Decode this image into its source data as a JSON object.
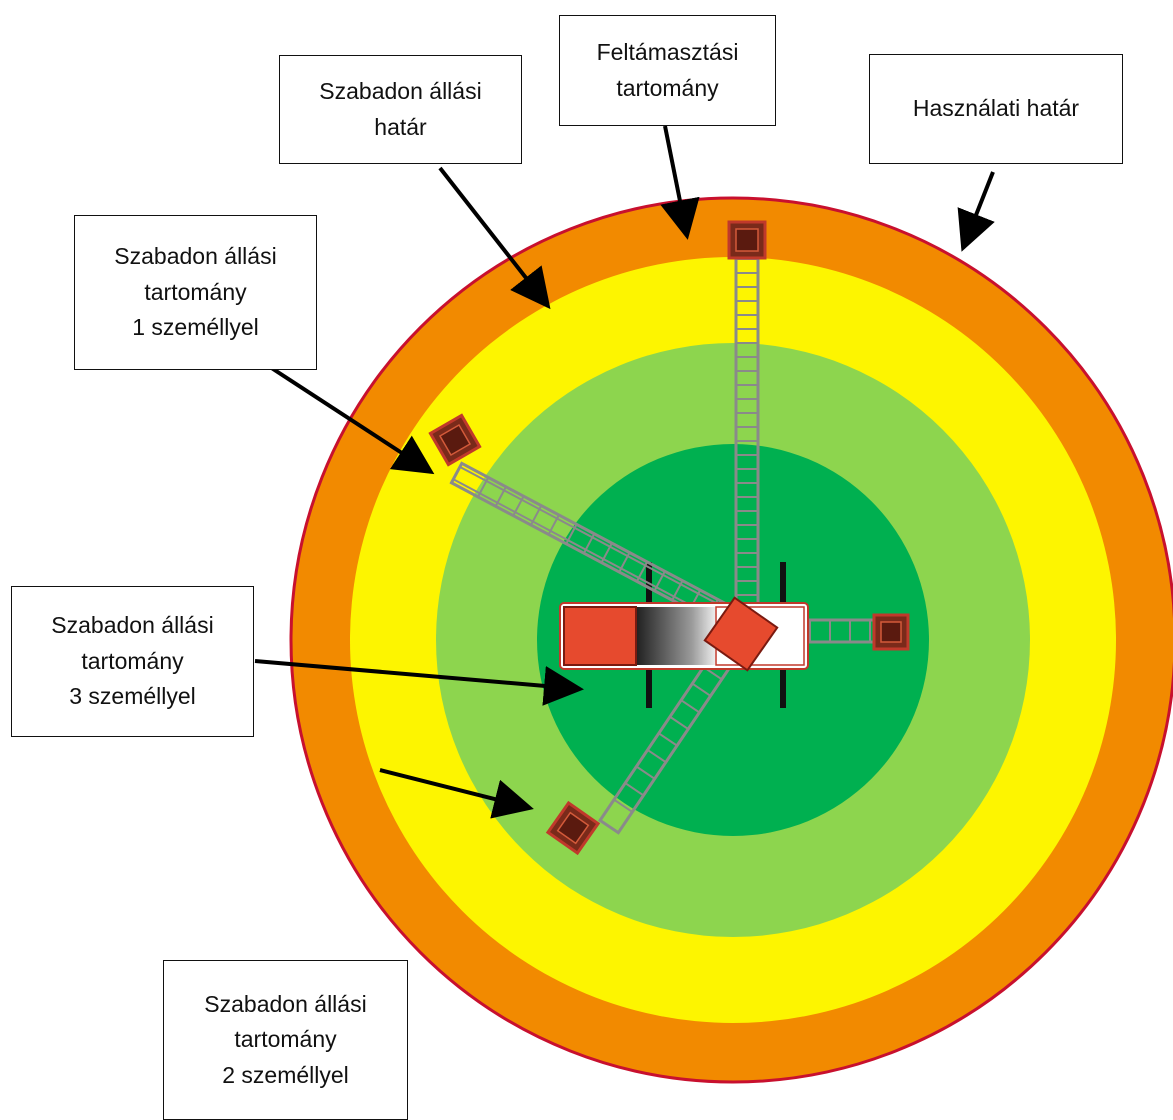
{
  "colors": {
    "usage_limit_ring": "#f28a00",
    "usage_limit_border": "#c8102e",
    "freestanding_1_person": "#fdf500",
    "freestanding_2_persons": "#8dd54e",
    "freestanding_3_persons": "#00b050",
    "ladder_base": "#7a2a1a",
    "truck_red": "#e64a2e",
    "ladder_rails": "#8a8a8a",
    "arrow": "#000000"
  },
  "labels": {
    "support_range": [
      "Feltámasztási",
      "tartomány"
    ],
    "freestanding_limit": [
      "Szabadon állási",
      "határ"
    ],
    "usage_limit": [
      "Használati határ"
    ],
    "freestanding_range_1": [
      "Szabadon állási",
      "tartomány",
      "1 személlyel"
    ],
    "freestanding_range_3": [
      "Szabadon állási",
      "tartomány",
      "3 személlyel"
    ],
    "freestanding_range_2": [
      "Szabadon állási",
      "tartomány",
      "2 személlyel"
    ]
  },
  "icons": {
    "firefighter": "firefighter-icon",
    "ladder_platform": "ladder-platform-icon",
    "fire_truck": "fire-truck-icon"
  }
}
